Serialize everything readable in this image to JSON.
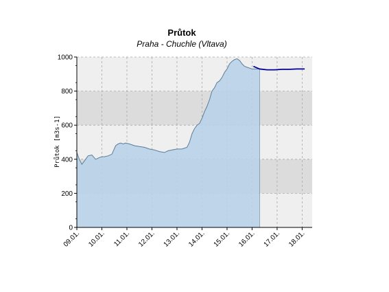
{
  "chart_data": {
    "type": "area",
    "title": "Průtok",
    "subtitle": "Praha - Chuchle (Vltava)",
    "ylabel": "Průtok [m3s-1]",
    "xlabel": "",
    "ylim": [
      0,
      1000
    ],
    "y_ticks": [
      0,
      200,
      400,
      600,
      800,
      1000
    ],
    "x_range_days": [
      0,
      9.4
    ],
    "x_ticks": [
      "09.01.",
      "10.01.",
      "11.01.",
      "12.01.",
      "13.01.",
      "14.01.",
      "15.01.",
      "16.01.",
      "17.01.",
      "18.01."
    ],
    "grid": true,
    "observed": {
      "x": [
        0.0,
        0.1,
        0.2,
        0.3,
        0.45,
        0.6,
        0.75,
        0.9,
        1.0,
        1.1,
        1.25,
        1.4,
        1.55,
        1.65,
        1.75,
        1.85,
        1.95,
        2.1,
        2.3,
        2.5,
        2.7,
        2.9,
        3.1,
        3.3,
        3.5,
        3.65,
        3.8,
        4.0,
        4.2,
        4.4,
        4.5,
        4.6,
        4.7,
        4.8,
        4.9,
        5.0,
        5.1,
        5.2,
        5.3,
        5.4,
        5.5,
        5.6,
        5.7,
        5.8,
        5.9,
        6.0,
        6.1,
        6.2,
        6.3,
        6.4,
        6.5,
        6.6,
        6.7,
        6.8,
        6.9,
        7.0,
        7.05,
        7.1,
        7.2,
        7.3
      ],
      "y": [
        440,
        400,
        370,
        390,
        420,
        425,
        400,
        410,
        415,
        415,
        420,
        430,
        480,
        490,
        495,
        490,
        495,
        490,
        480,
        475,
        470,
        460,
        455,
        445,
        440,
        450,
        455,
        460,
        460,
        470,
        500,
        550,
        580,
        600,
        610,
        640,
        680,
        710,
        750,
        800,
        820,
        850,
        860,
        880,
        910,
        930,
        960,
        975,
        985,
        990,
        980,
        960,
        945,
        940,
        935,
        930,
        930,
        930,
        930,
        930
      ]
    },
    "forecast": {
      "x": [
        7.05,
        7.3,
        7.6,
        7.9,
        8.2,
        8.5,
        8.8,
        9.1
      ],
      "y": [
        945,
        930,
        925,
        925,
        928,
        928,
        930,
        930
      ]
    },
    "forecast_start_x": 7.3,
    "colors": {
      "area_fill": "#b9d1e8",
      "area_stroke": "#5b7d99",
      "forecast_line": "#000099",
      "band_dark": "#dcdcdc",
      "band_light": "#efefef",
      "grid": "#a8a8a8"
    }
  }
}
